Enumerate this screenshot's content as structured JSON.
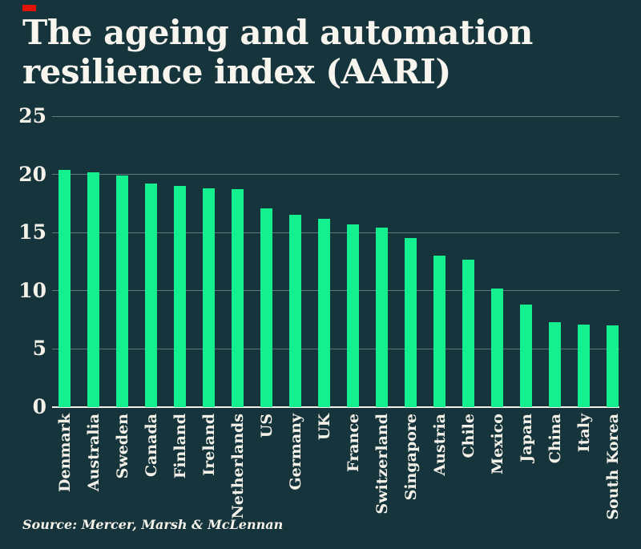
{
  "page": {
    "background_color": "#16343c",
    "accent_mark_color": "#e3120b",
    "text_color": "#f4f1e8"
  },
  "title": {
    "line1": "The ageing and automation",
    "line2": "resilience index (AARI)"
  },
  "source": "Source: Mercer, Marsh & McLennan",
  "chart_data": {
    "type": "bar",
    "title": "The ageing and automation resilience index (AARI)",
    "categories": [
      "Denmark",
      "Australia",
      "Sweden",
      "Canada",
      "Finland",
      "Ireland",
      "Netherlands",
      "US",
      "Germany",
      "UK",
      "France",
      "Switzerland",
      "Singapore",
      "Austria",
      "Chile",
      "Mexico",
      "Japan",
      "China",
      "Italy",
      "South Korea"
    ],
    "values": [
      20.4,
      20.2,
      19.9,
      19.2,
      19.0,
      18.8,
      18.7,
      17.1,
      16.5,
      16.2,
      15.7,
      15.4,
      14.5,
      13.0,
      12.7,
      10.2,
      8.8,
      7.3,
      7.1,
      7.0
    ],
    "xlabel": "",
    "ylabel": "",
    "ylim": [
      0,
      25
    ],
    "yticks": [
      0,
      5,
      10,
      15,
      20,
      25
    ],
    "grid": "horizontal",
    "legend": "none",
    "x_tick_rotation_deg": 90,
    "bar_color": "#14f08f",
    "gridline_color": "#5f777e",
    "axis_line_color": "#f4f1e8"
  }
}
